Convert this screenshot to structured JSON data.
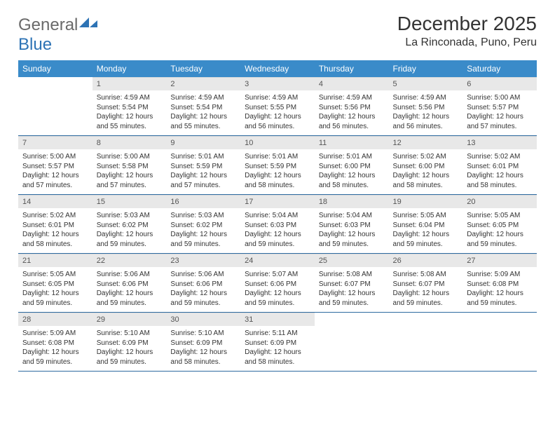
{
  "logo": {
    "text_part1": "General",
    "text_part2": "Blue"
  },
  "title": "December 2025",
  "location": "La Rinconada, Puno, Peru",
  "colors": {
    "header_bg": "#3a8bc9",
    "header_text": "#ffffff",
    "daynum_bg": "#e8e8e8",
    "border": "#2d6aa0",
    "logo_gray": "#6a6a6a",
    "logo_blue": "#2d73b5"
  },
  "weekdays": [
    "Sunday",
    "Monday",
    "Tuesday",
    "Wednesday",
    "Thursday",
    "Friday",
    "Saturday"
  ],
  "weeks": [
    [
      {
        "empty": true
      },
      {
        "n": "1",
        "sr": "4:59 AM",
        "ss": "5:54 PM",
        "dl": "12 hours and 55 minutes."
      },
      {
        "n": "2",
        "sr": "4:59 AM",
        "ss": "5:54 PM",
        "dl": "12 hours and 55 minutes."
      },
      {
        "n": "3",
        "sr": "4:59 AM",
        "ss": "5:55 PM",
        "dl": "12 hours and 56 minutes."
      },
      {
        "n": "4",
        "sr": "4:59 AM",
        "ss": "5:56 PM",
        "dl": "12 hours and 56 minutes."
      },
      {
        "n": "5",
        "sr": "4:59 AM",
        "ss": "5:56 PM",
        "dl": "12 hours and 56 minutes."
      },
      {
        "n": "6",
        "sr": "5:00 AM",
        "ss": "5:57 PM",
        "dl": "12 hours and 57 minutes."
      }
    ],
    [
      {
        "n": "7",
        "sr": "5:00 AM",
        "ss": "5:57 PM",
        "dl": "12 hours and 57 minutes."
      },
      {
        "n": "8",
        "sr": "5:00 AM",
        "ss": "5:58 PM",
        "dl": "12 hours and 57 minutes."
      },
      {
        "n": "9",
        "sr": "5:01 AM",
        "ss": "5:59 PM",
        "dl": "12 hours and 57 minutes."
      },
      {
        "n": "10",
        "sr": "5:01 AM",
        "ss": "5:59 PM",
        "dl": "12 hours and 58 minutes."
      },
      {
        "n": "11",
        "sr": "5:01 AM",
        "ss": "6:00 PM",
        "dl": "12 hours and 58 minutes."
      },
      {
        "n": "12",
        "sr": "5:02 AM",
        "ss": "6:00 PM",
        "dl": "12 hours and 58 minutes."
      },
      {
        "n": "13",
        "sr": "5:02 AM",
        "ss": "6:01 PM",
        "dl": "12 hours and 58 minutes."
      }
    ],
    [
      {
        "n": "14",
        "sr": "5:02 AM",
        "ss": "6:01 PM",
        "dl": "12 hours and 58 minutes."
      },
      {
        "n": "15",
        "sr": "5:03 AM",
        "ss": "6:02 PM",
        "dl": "12 hours and 59 minutes."
      },
      {
        "n": "16",
        "sr": "5:03 AM",
        "ss": "6:02 PM",
        "dl": "12 hours and 59 minutes."
      },
      {
        "n": "17",
        "sr": "5:04 AM",
        "ss": "6:03 PM",
        "dl": "12 hours and 59 minutes."
      },
      {
        "n": "18",
        "sr": "5:04 AM",
        "ss": "6:03 PM",
        "dl": "12 hours and 59 minutes."
      },
      {
        "n": "19",
        "sr": "5:05 AM",
        "ss": "6:04 PM",
        "dl": "12 hours and 59 minutes."
      },
      {
        "n": "20",
        "sr": "5:05 AM",
        "ss": "6:05 PM",
        "dl": "12 hours and 59 minutes."
      }
    ],
    [
      {
        "n": "21",
        "sr": "5:05 AM",
        "ss": "6:05 PM",
        "dl": "12 hours and 59 minutes."
      },
      {
        "n": "22",
        "sr": "5:06 AM",
        "ss": "6:06 PM",
        "dl": "12 hours and 59 minutes."
      },
      {
        "n": "23",
        "sr": "5:06 AM",
        "ss": "6:06 PM",
        "dl": "12 hours and 59 minutes."
      },
      {
        "n": "24",
        "sr": "5:07 AM",
        "ss": "6:06 PM",
        "dl": "12 hours and 59 minutes."
      },
      {
        "n": "25",
        "sr": "5:08 AM",
        "ss": "6:07 PM",
        "dl": "12 hours and 59 minutes."
      },
      {
        "n": "26",
        "sr": "5:08 AM",
        "ss": "6:07 PM",
        "dl": "12 hours and 59 minutes."
      },
      {
        "n": "27",
        "sr": "5:09 AM",
        "ss": "6:08 PM",
        "dl": "12 hours and 59 minutes."
      }
    ],
    [
      {
        "n": "28",
        "sr": "5:09 AM",
        "ss": "6:08 PM",
        "dl": "12 hours and 59 minutes."
      },
      {
        "n": "29",
        "sr": "5:10 AM",
        "ss": "6:09 PM",
        "dl": "12 hours and 59 minutes."
      },
      {
        "n": "30",
        "sr": "5:10 AM",
        "ss": "6:09 PM",
        "dl": "12 hours and 58 minutes."
      },
      {
        "n": "31",
        "sr": "5:11 AM",
        "ss": "6:09 PM",
        "dl": "12 hours and 58 minutes."
      },
      {
        "empty": true
      },
      {
        "empty": true
      },
      {
        "empty": true
      }
    ]
  ],
  "labels": {
    "sunrise": "Sunrise:",
    "sunset": "Sunset:",
    "daylight": "Daylight:"
  }
}
